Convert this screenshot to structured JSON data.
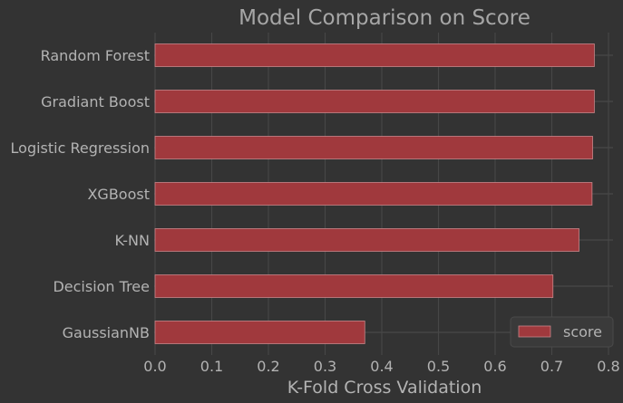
{
  "chart_data": {
    "type": "bar",
    "orientation": "horizontal",
    "title": "Model Comparison on Score",
    "xlabel": "K-Fold Cross Validation",
    "ylabel": "",
    "categories": [
      "Random Forest",
      "Gradiant Boost",
      "Logistic Regression",
      "XGBoost",
      "K-NN",
      "Decision Tree",
      "GaussianNB"
    ],
    "series": [
      {
        "name": "score",
        "values": [
          0.775,
          0.775,
          0.772,
          0.771,
          0.748,
          0.702,
          0.37
        ]
      }
    ],
    "xlim": [
      0.0,
      0.8
    ],
    "xticks": [
      "0.0",
      "0.1",
      "0.2",
      "0.3",
      "0.4",
      "0.5",
      "0.6",
      "0.7",
      "0.8"
    ],
    "grid": true,
    "legend_position": "bottom-right",
    "colors": {
      "background": "#333333",
      "bar_fill": "#a0393d",
      "bar_edge": "#c9878a",
      "grid": "#474747",
      "text": "#b3b3b3",
      "title": "#a6a6a6",
      "legend_bg": "#3a3a3a",
      "legend_edge": "#4a4a4a"
    }
  }
}
